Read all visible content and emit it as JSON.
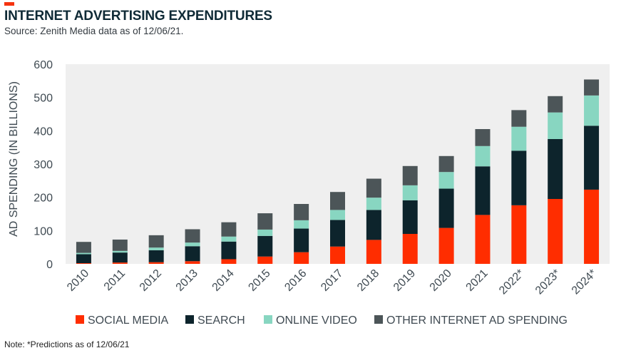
{
  "header": {
    "title": "INTERNET ADVERTISING EXPENDITURES",
    "subtitle": "Source: Zenith Media data as of 12/06/21."
  },
  "footer": {
    "note": "Note: *Predictions as of 12/06/21"
  },
  "chart_data": {
    "type": "bar",
    "stacked": true,
    "categories": [
      "2010",
      "2011",
      "2012",
      "2013",
      "2014",
      "2015",
      "2016",
      "2017",
      "2018",
      "2019",
      "2020",
      "2021",
      "2022*",
      "2023*",
      "2024*"
    ],
    "series": [
      {
        "name": "SOCIAL MEDIA",
        "color": "#ff2d00",
        "values": [
          2,
          4,
          5,
          8,
          14,
          22,
          35,
          52,
          72,
          90,
          108,
          147,
          176,
          195,
          223
        ]
      },
      {
        "name": "SEARCH",
        "color": "#0d242c",
        "values": [
          27,
          30,
          36,
          45,
          53,
          62,
          71,
          80,
          90,
          101,
          118,
          146,
          164,
          180,
          192
        ]
      },
      {
        "name": "ONLINE VIDEO",
        "color": "#88d6c1",
        "values": [
          4,
          5,
          8,
          11,
          15,
          19,
          25,
          30,
          37,
          45,
          50,
          61,
          72,
          80,
          91
        ]
      },
      {
        "name": "OTHER INTERNET AD SPENDING",
        "color": "#4c5558",
        "values": [
          33,
          34,
          37,
          40,
          43,
          49,
          49,
          54,
          57,
          58,
          48,
          51,
          50,
          49,
          48
        ]
      }
    ],
    "title": "INTERNET ADVERTISING EXPENDITURES",
    "xlabel": "",
    "ylabel": "AD SPENDING (IN BILLIONS)",
    "ylim": [
      0,
      600
    ],
    "yticks": [
      0,
      100,
      200,
      300,
      400,
      500,
      600
    ],
    "grid": false,
    "plot_background": "#efefef",
    "legend_position": "bottom"
  }
}
